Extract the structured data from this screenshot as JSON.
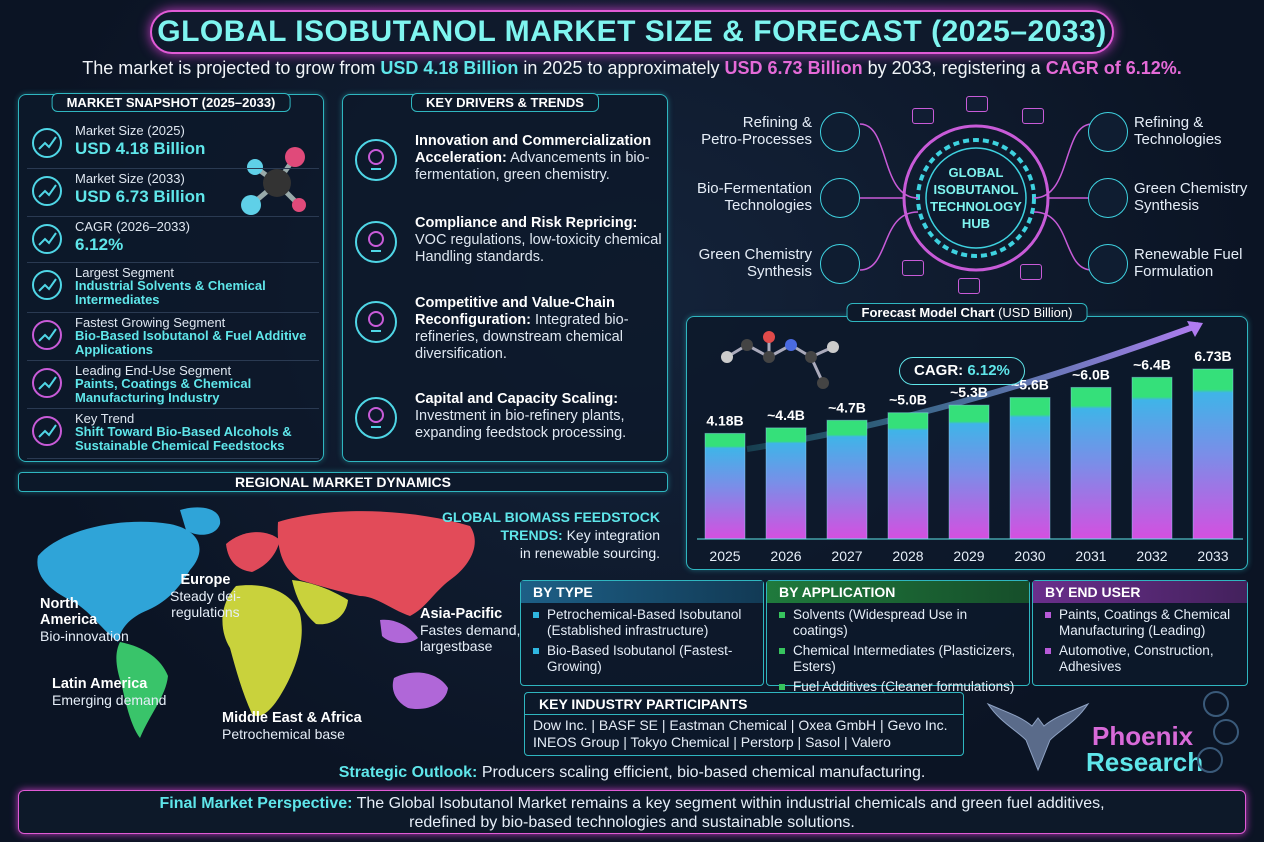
{
  "header": {
    "title": "GLOBAL ISOBUTANOL MARKET SIZE & FORECAST (2025–2033)",
    "sub_a": "The market is projected to grow from ",
    "sub_b": "USD 4.18 Billion",
    "sub_c": " in 2025 to approximately ",
    "sub_d": "USD 6.73 Billion",
    "sub_e": " by 2033, registering a ",
    "sub_f": "CAGR of 6.12%."
  },
  "snapshot": {
    "title": "MARKET SNAPSHOT (2025–2033)",
    "rows": [
      {
        "label": "Market Size (2025)",
        "value": "USD 4.18 Billion",
        "icon": "clock-chart-icon"
      },
      {
        "label": "Market Size (2033)",
        "value": "USD 6.73 Billion",
        "icon": "bar-chart-icon"
      },
      {
        "label": "CAGR (2026–2033)",
        "value": "6.12%",
        "icon": "growth-chart-icon"
      },
      {
        "label": "Largest Segment",
        "value": "Industrial Solvents & Chemical Intermediates",
        "icon": "globe-icon"
      },
      {
        "label": "Fastest Growing Segment",
        "value": "Bio-Based Isobutanol & Fuel Additive Applications",
        "icon": "leaf-flask-icon"
      },
      {
        "label": "Leading End-Use Segment",
        "value": "Paints, Coatings & Chemical Manufacturing Industry",
        "icon": "factory-icon"
      },
      {
        "label": "Key Trend",
        "value": "Shift Toward Bio-Based Alcohols & Sustainable Chemical Feedstocks",
        "icon": "chip-icon"
      }
    ]
  },
  "drivers": {
    "title": "KEY DRIVERS & TRENDS",
    "items": [
      {
        "head": "Innovation and Commercialization Acceleration:",
        "body": " Advancements in bio-fermentation, green chemistry.",
        "icon": "lightbulb-icon"
      },
      {
        "head": "Compliance and Risk Repricing:",
        "body": " VOC regulations, low-toxicity chemical Handling standards.",
        "icon": "clipboard-icon"
      },
      {
        "head": "Competitive and Value-Chain Reconfiguration:",
        "body": " Integrated bio-refineries, downstream chemical diversification.",
        "icon": "network-icon"
      },
      {
        "head": "Capital and Capacity Scaling:",
        "body": " Investment in bio-refinery plants, expanding feedstock processing.",
        "icon": "money-hand-icon"
      }
    ]
  },
  "hub": {
    "center": [
      "GLOBAL",
      "ISOBUTANOL",
      "TECHNOLOGY",
      "HUB"
    ],
    "left": [
      [
        "Refining &",
        "Petro-Processes"
      ],
      [
        "Bio-Fermentation",
        "Technologies"
      ],
      [
        "Green Chemistry",
        "Synthesis"
      ]
    ],
    "right": [
      [
        "Refining &",
        "Technologies"
      ],
      [
        "Green Chemistry",
        "Synthesis"
      ],
      [
        "Renewable Fuel",
        "Formulation"
      ]
    ]
  },
  "chart_data": {
    "type": "bar",
    "title": "Forecast Model Chart",
    "title_unit": "(USD Billion)",
    "categories": [
      "2025",
      "2026",
      "2027",
      "2028",
      "2029",
      "2030",
      "2031",
      "2032",
      "2033"
    ],
    "values": [
      4.18,
      4.4,
      4.7,
      5.0,
      5.3,
      5.6,
      6.0,
      6.4,
      6.73
    ],
    "data_labels": [
      "4.18B",
      "~4.4B",
      "~4.7B",
      "~5.0B",
      "~5.3B",
      "~5.6B",
      "~6.0B",
      "~6.4B",
      "6.73B"
    ],
    "annotation_label": "CAGR:",
    "annotation_value": "6.12%",
    "grid": false,
    "colors": {
      "top": "#35e07a",
      "mid": "#3fb4e8",
      "bottom": "#d54fe0"
    }
  },
  "regional": {
    "title": "REGIONAL MARKET DYNAMICS",
    "feedstock_head": "GLOBAL BIOMASS FEEDSTOCK",
    "feedstock_head2": "TRENDS:",
    "feedstock_body": " Key integration",
    "feedstock_body2": "in renewable sourcing.",
    "regions": [
      {
        "name": [
          "North",
          "America"
        ],
        "desc": [
          "Bio-innovation"
        ]
      },
      {
        "name": [
          "Europe"
        ],
        "desc": [
          "Steady dei-",
          "regulations"
        ]
      },
      {
        "name": [
          "Asia-Pacific"
        ],
        "desc": [
          "Fastes demand,",
          "largestbase"
        ]
      },
      {
        "name": [
          "Latin America"
        ],
        "desc": [
          "Emerging demand"
        ]
      },
      {
        "name": [
          "Middle East & Africa"
        ],
        "desc": [
          "Petrochemical base"
        ]
      }
    ],
    "colors": {
      "north_america": "#2fa4d8",
      "europe": "#e04a5a",
      "asia": "#e24b59",
      "latin_america": "#39c46a",
      "africa": "#c9d23c",
      "australia": "#b067d8"
    }
  },
  "segments": {
    "type": {
      "title": "BY TYPE",
      "color": "#2fb6e0",
      "items": [
        "Petrochemical-Based Isobutanol (Established infrastructure)",
        "Bio-Based Isobutanol (Fastest-Growing)"
      ]
    },
    "application": {
      "title": "BY APPLICATION",
      "color": "#37c45e",
      "items": [
        "Solvents (Widespread Use in coatings)",
        "Chemical Intermediates (Plasticizers, Esters)",
        "Fuel Additives (Cleaner formulations)"
      ]
    },
    "end_user": {
      "title": "BY END USER",
      "color": "#b85ad8",
      "items": [
        "Paints, Coatings & Chemical Manufacturing (Leading)",
        "Automotive, Construction, Adhesives"
      ]
    }
  },
  "participants": {
    "title": "KEY INDUSTRY PARTICIPANTS",
    "line1": "Dow Inc. | BASF SE | Eastman Chemical | Oxea GmbH | Gevo Inc.",
    "line2": "INEOS Group | Tokyo Chemical | Perstorp | Sasol | Valero"
  },
  "logo": {
    "line1": "Phoenix",
    "line2": "Research"
  },
  "outlook": {
    "head": "Strategic Outlook:",
    "body": " Producers scaling efficient, bio-based chemical manufacturing."
  },
  "final": {
    "head": "Final Market Perspective:",
    "body": " The Global Isobutanol Market remains a key segment within industrial chemicals and green fuel additives,",
    "body2": "redefined by bio-based technologies and sustainable solutions."
  }
}
